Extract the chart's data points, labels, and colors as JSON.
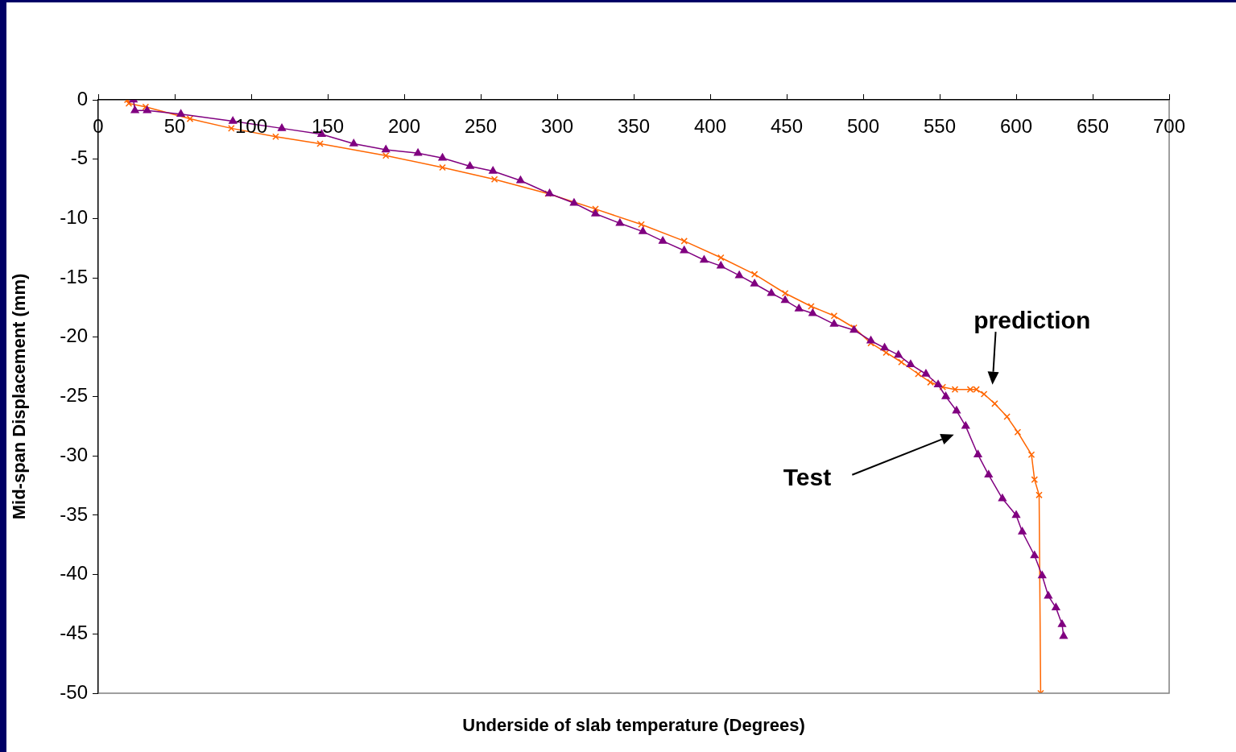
{
  "chart_data": {
    "type": "line",
    "xlabel": "Underside of slab temperature (Degrees)",
    "ylabel": "Mid-span Displacement (mm)",
    "xlim": [
      0,
      700
    ],
    "xticks": [
      0,
      50,
      100,
      150,
      200,
      250,
      300,
      350,
      400,
      450,
      500,
      550,
      600,
      650,
      700
    ],
    "ylim": [
      -50,
      0
    ],
    "yticks": [
      0,
      -5,
      -10,
      -15,
      -20,
      -25,
      -30,
      -35,
      -40,
      -45,
      -50
    ],
    "grid": false,
    "legend": false,
    "line_style": "solid",
    "series": [
      {
        "color": "#800080",
        "marker": "triangle",
        "x": [
          23,
          24,
          32,
          54,
          88,
          120,
          146,
          167,
          188,
          209,
          225,
          243,
          258,
          276,
          295,
          311,
          325,
          341,
          356,
          369,
          383,
          396,
          407,
          419,
          429,
          440,
          449,
          458,
          467,
          481,
          494,
          505,
          514,
          523,
          531,
          541,
          549,
          554,
          561,
          567,
          575,
          582,
          591,
          600,
          604,
          612,
          617,
          621,
          626,
          630,
          631
        ],
        "values": [
          0,
          -0.9,
          -0.9,
          -1.2,
          -1.8,
          -2.4,
          -2.9,
          -3.7,
          -4.2,
          -4.5,
          -4.9,
          -5.6,
          -6.0,
          -6.8,
          -7.9,
          -8.7,
          -9.6,
          -10.4,
          -11.1,
          -11.9,
          -12.7,
          -13.5,
          -14.0,
          -14.8,
          -15.5,
          -16.3,
          -16.9,
          -17.6,
          -18.0,
          -18.9,
          -19.4,
          -20.3,
          -20.9,
          -21.5,
          -22.3,
          -23.1,
          -24.0,
          -25.0,
          -26.2,
          -27.5,
          -29.9,
          -31.6,
          -33.6,
          -35.0,
          -36.4,
          -38.4,
          -40.1,
          -41.8,
          -42.8,
          -44.2,
          -45.2
        ]
      },
      {
        "color": "#ff6600",
        "marker": "cross",
        "x": [
          19,
          20,
          31,
          60,
          87,
          116,
          145,
          188,
          225,
          259,
          294,
          325,
          355,
          383,
          407,
          429,
          449,
          466,
          481,
          494,
          505,
          515,
          525,
          536,
          544,
          552,
          560,
          570,
          574,
          579,
          586,
          594,
          601,
          610,
          612,
          615,
          616
        ],
        "values": [
          0,
          -0.3,
          -0.6,
          -1.6,
          -2.4,
          -3.1,
          -3.7,
          -4.7,
          -5.7,
          -6.7,
          -7.9,
          -9.2,
          -10.5,
          -11.9,
          -13.3,
          -14.7,
          -16.3,
          -17.4,
          -18.2,
          -19.2,
          -20.5,
          -21.3,
          -22.1,
          -23.1,
          -23.8,
          -24.2,
          -24.4,
          -24.4,
          -24.4,
          -24.8,
          -25.6,
          -26.7,
          -28.0,
          -29.9,
          -32.0,
          -33.3,
          -50
        ]
      }
    ],
    "annotations": [
      "prediction",
      "Test"
    ]
  }
}
